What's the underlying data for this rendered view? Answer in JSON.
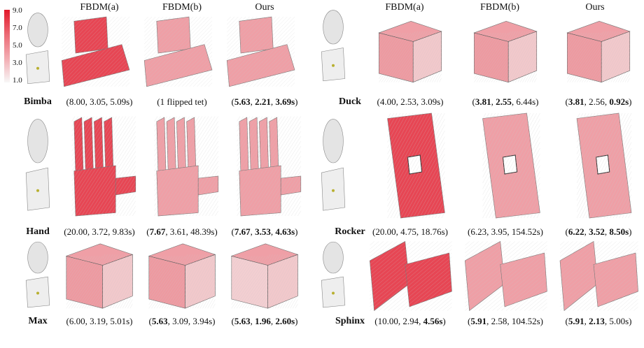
{
  "colorbar": {
    "ticks": [
      "9.0",
      "7.0",
      "5.0",
      "3.0",
      "1.0"
    ]
  },
  "columns": [
    "FBDM(a)",
    "FBDM(b)",
    "Ours"
  ],
  "models": [
    {
      "name": "Bimba",
      "stats": [
        {
          "parts": [
            {
              "t": "(8.00, 3.05, 5.09s)",
              "b": false
            }
          ]
        },
        {
          "parts": [
            {
              "t": "(1 flipped tet)",
              "b": false
            }
          ]
        },
        {
          "parts": [
            {
              "t": "(",
              "b": false
            },
            {
              "t": "5.63",
              "b": true
            },
            {
              "t": ", ",
              "b": false
            },
            {
              "t": "2.21",
              "b": true
            },
            {
              "t": ", ",
              "b": false
            },
            {
              "t": "3.69s",
              "b": true
            },
            {
              "t": ")",
              "b": false
            }
          ]
        }
      ]
    },
    {
      "name": "Duck",
      "stats": [
        {
          "parts": [
            {
              "t": "(4.00, 2.53, 3.09s)",
              "b": false
            }
          ]
        },
        {
          "parts": [
            {
              "t": "(",
              "b": false
            },
            {
              "t": "3.81",
              "b": true
            },
            {
              "t": ", ",
              "b": false
            },
            {
              "t": "2.55",
              "b": true
            },
            {
              "t": ", 6.44s)",
              "b": false
            }
          ]
        },
        {
          "parts": [
            {
              "t": "(",
              "b": false
            },
            {
              "t": "3.81",
              "b": true
            },
            {
              "t": ", 2.56, ",
              "b": false
            },
            {
              "t": "0.92s",
              "b": true
            },
            {
              "t": ")",
              "b": false
            }
          ]
        }
      ]
    },
    {
      "name": "Hand",
      "stats": [
        {
          "parts": [
            {
              "t": "(20.00, 3.72, 9.83s)",
              "b": false
            }
          ]
        },
        {
          "parts": [
            {
              "t": "(",
              "b": false
            },
            {
              "t": "7.67",
              "b": true
            },
            {
              "t": ", 3.61, 48.39s)",
              "b": false
            }
          ]
        },
        {
          "parts": [
            {
              "t": "(",
              "b": false
            },
            {
              "t": "7.67",
              "b": true
            },
            {
              "t": ", ",
              "b": false
            },
            {
              "t": "3.53",
              "b": true
            },
            {
              "t": ", ",
              "b": false
            },
            {
              "t": "4.63s",
              "b": true
            },
            {
              "t": ")",
              "b": false
            }
          ]
        }
      ]
    },
    {
      "name": "Rocker",
      "stats": [
        {
          "parts": [
            {
              "t": "(20.00, 4.75, 18.76s)",
              "b": false
            }
          ]
        },
        {
          "parts": [
            {
              "t": "(6.23, 3.95, 154.52s)",
              "b": false
            }
          ]
        },
        {
          "parts": [
            {
              "t": "(",
              "b": false
            },
            {
              "t": "6.22",
              "b": true
            },
            {
              "t": ", ",
              "b": false
            },
            {
              "t": "3.52",
              "b": true
            },
            {
              "t": ", ",
              "b": false
            },
            {
              "t": "8.50s",
              "b": true
            },
            {
              "t": ")",
              "b": false
            }
          ]
        }
      ]
    },
    {
      "name": "Max",
      "stats": [
        {
          "parts": [
            {
              "t": "(6.00, 3.19, 5.01s)",
              "b": false
            }
          ]
        },
        {
          "parts": [
            {
              "t": "(",
              "b": false
            },
            {
              "t": "5.63",
              "b": true
            },
            {
              "t": ", 3.09, 3.94s)",
              "b": false
            }
          ]
        },
        {
          "parts": [
            {
              "t": "(",
              "b": false
            },
            {
              "t": "5.63",
              "b": true
            },
            {
              "t": ", ",
              "b": false
            },
            {
              "t": "1.96",
              "b": true
            },
            {
              "t": ", ",
              "b": false
            },
            {
              "t": "2.60s",
              "b": true
            },
            {
              "t": ")",
              "b": false
            }
          ]
        }
      ]
    },
    {
      "name": "Sphinx",
      "stats": [
        {
          "parts": [
            {
              "t": "(10.00, 2.94, ",
              "b": false
            },
            {
              "t": "4.56s",
              "b": true
            },
            {
              "t": ")",
              "b": false
            }
          ]
        },
        {
          "parts": [
            {
              "t": "(",
              "b": false
            },
            {
              "t": "5.91",
              "b": true
            },
            {
              "t": ", 2.58, 104.52s)",
              "b": false
            }
          ]
        },
        {
          "parts": [
            {
              "t": "(",
              "b": false
            },
            {
              "t": "5.91",
              "b": true
            },
            {
              "t": ", ",
              "b": false
            },
            {
              "t": "2.13",
              "b": true
            },
            {
              "t": ", 5.00s)",
              "b": false
            }
          ]
        }
      ]
    }
  ],
  "colors": {
    "hot": "#e2192a",
    "mid": "#ec8890",
    "cool": "#f2c6c9",
    "mesh": "#c9c9c9"
  }
}
